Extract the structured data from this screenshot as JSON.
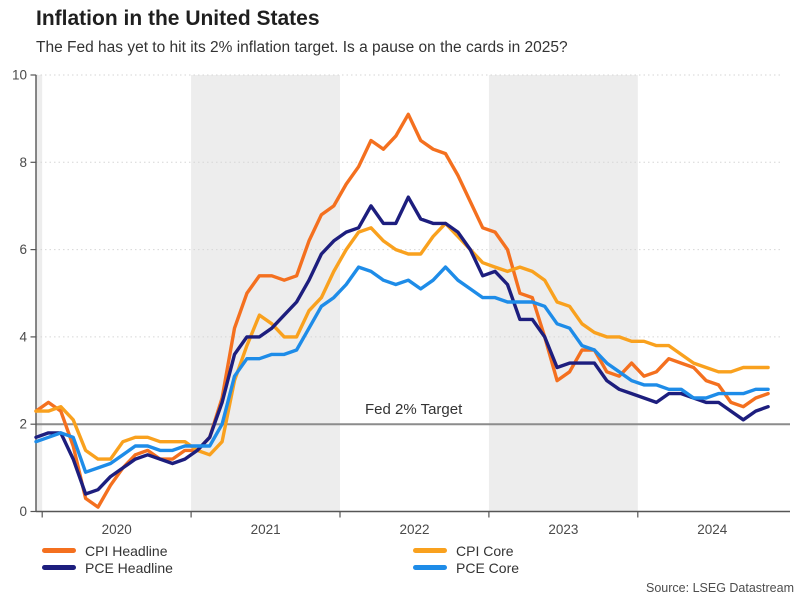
{
  "header": {
    "title": "Inflation in the United States",
    "subtitle": "The Fed has yet to hit its 2% inflation target. Is a pause on the cards in 2025?"
  },
  "source": "Source: LSEG Datastream",
  "chart_data": {
    "type": "line",
    "x_monthly_from": "2019-12",
    "x_monthly_to": "2024-11",
    "x_tick_labels": [
      "2020",
      "2021",
      "2022",
      "2023",
      "2024"
    ],
    "ylim": [
      0,
      10
    ],
    "y_ticks": [
      0,
      2,
      4,
      6,
      8,
      10
    ],
    "grid": "horizontal-dotted",
    "legend_position": "bottom",
    "band_color": "#EDEDED",
    "shaded_years": [
      2019,
      2021,
      2023
    ],
    "target_line": {
      "value": 2,
      "label": "Fed 2% Target",
      "color": "#8C8C8C"
    },
    "series": [
      {
        "name": "CPI Headline",
        "color": "#F4701F",
        "values": [
          2.3,
          2.5,
          2.3,
          1.5,
          0.3,
          0.1,
          0.6,
          1.0,
          1.3,
          1.4,
          1.2,
          1.2,
          1.4,
          1.4,
          1.7,
          2.6,
          4.2,
          5.0,
          5.4,
          5.4,
          5.3,
          5.4,
          6.2,
          6.8,
          7.0,
          7.5,
          7.9,
          8.5,
          8.3,
          8.6,
          9.1,
          8.5,
          8.3,
          8.2,
          7.7,
          7.1,
          6.5,
          6.4,
          6.0,
          5.0,
          4.9,
          4.0,
          3.0,
          3.2,
          3.7,
          3.7,
          3.2,
          3.1,
          3.4,
          3.1,
          3.2,
          3.5,
          3.4,
          3.3,
          3.0,
          2.9,
          2.5,
          2.4,
          2.6,
          2.7
        ]
      },
      {
        "name": "CPI Core",
        "color": "#F9A11E",
        "values": [
          2.3,
          2.3,
          2.4,
          2.1,
          1.4,
          1.2,
          1.2,
          1.6,
          1.7,
          1.7,
          1.6,
          1.6,
          1.6,
          1.4,
          1.3,
          1.6,
          3.0,
          3.8,
          4.5,
          4.3,
          4.0,
          4.0,
          4.6,
          4.9,
          5.5,
          6.0,
          6.4,
          6.5,
          6.2,
          6.0,
          5.9,
          5.9,
          6.3,
          6.6,
          6.3,
          6.0,
          5.7,
          5.6,
          5.5,
          5.6,
          5.5,
          5.3,
          4.8,
          4.7,
          4.3,
          4.1,
          4.0,
          4.0,
          3.9,
          3.9,
          3.8,
          3.8,
          3.6,
          3.4,
          3.3,
          3.2,
          3.2,
          3.3,
          3.3,
          3.3
        ]
      },
      {
        "name": "PCE Headline",
        "color": "#1D1E7E",
        "values": [
          1.7,
          1.8,
          1.8,
          1.2,
          0.4,
          0.5,
          0.8,
          1.0,
          1.2,
          1.3,
          1.2,
          1.1,
          1.2,
          1.4,
          1.7,
          2.5,
          3.6,
          4.0,
          4.0,
          4.2,
          4.5,
          4.8,
          5.3,
          5.9,
          6.2,
          6.4,
          6.5,
          7.0,
          6.6,
          6.6,
          7.2,
          6.7,
          6.6,
          6.6,
          6.4,
          6.0,
          5.4,
          5.5,
          5.2,
          4.4,
          4.4,
          4.0,
          3.3,
          3.4,
          3.4,
          3.4,
          3.0,
          2.8,
          2.7,
          2.6,
          2.5,
          2.7,
          2.7,
          2.6,
          2.5,
          2.5,
          2.3,
          2.1,
          2.3,
          2.4
        ]
      },
      {
        "name": "PCE Core",
        "color": "#1E8CE8",
        "values": [
          1.6,
          1.7,
          1.8,
          1.7,
          0.9,
          1.0,
          1.1,
          1.3,
          1.5,
          1.5,
          1.4,
          1.4,
          1.5,
          1.5,
          1.5,
          2.0,
          3.1,
          3.5,
          3.5,
          3.6,
          3.6,
          3.7,
          4.2,
          4.7,
          4.9,
          5.2,
          5.6,
          5.5,
          5.3,
          5.2,
          5.3,
          5.1,
          5.3,
          5.6,
          5.3,
          5.1,
          4.9,
          4.9,
          4.8,
          4.8,
          4.8,
          4.7,
          4.3,
          4.2,
          3.8,
          3.7,
          3.4,
          3.2,
          3.0,
          2.9,
          2.9,
          2.8,
          2.8,
          2.6,
          2.6,
          2.7,
          2.7,
          2.7,
          2.8,
          2.8
        ]
      }
    ]
  }
}
